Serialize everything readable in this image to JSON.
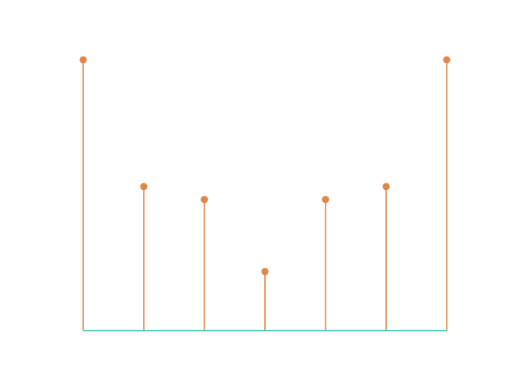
{
  "chart_data": {
    "type": "stem",
    "x": [
      0,
      1,
      2,
      3,
      4,
      5,
      6
    ],
    "values": [
      1.0,
      0.532,
      0.484,
      0.218,
      0.484,
      0.532,
      1.0
    ],
    "ylim": [
      0,
      1
    ],
    "xlim": [
      0,
      6
    ],
    "baseline": 0,
    "axes_visible": false,
    "grid": false,
    "colors": {
      "stem": "#e0874a",
      "marker": "#e0874a",
      "baseline": "#3ec9c0"
    },
    "title": "",
    "xlabel": "",
    "ylabel": ""
  }
}
